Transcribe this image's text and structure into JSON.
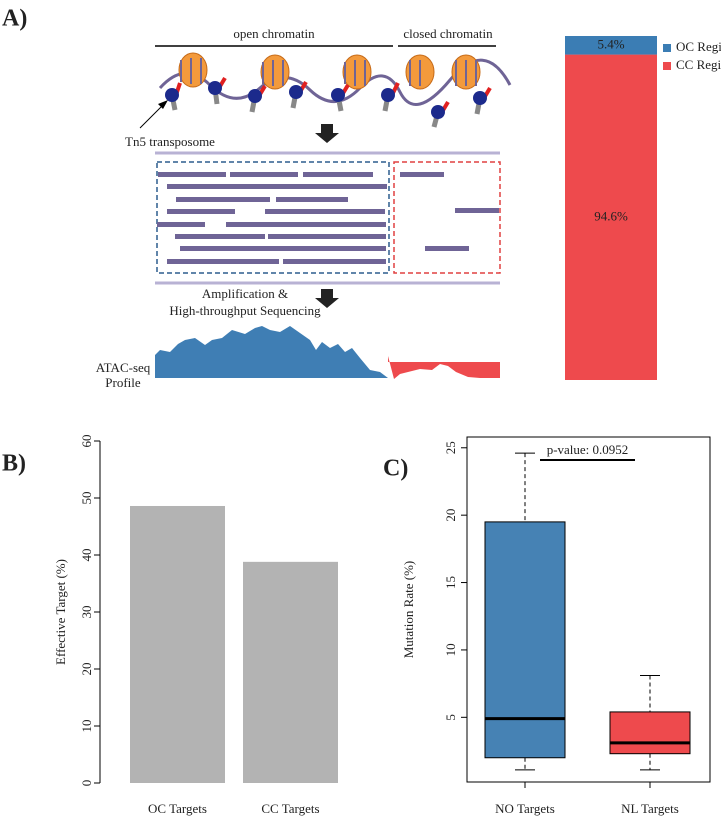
{
  "diagram": {
    "open": "open chromatin",
    "closed": "closed chromatin",
    "tn5": "Tn5 transposome",
    "amp1": "Amplification &",
    "amp2": "High-throughput Sequencing",
    "profile1": "ATAC-seq",
    "profile2": "Profile"
  },
  "chart_data": [
    {
      "type": "stacked-bar",
      "panel_label": "A)",
      "ylim": [
        0,
        100
      ],
      "series": [
        {
          "name": "OC Region",
          "color": "#3b7db4",
          "values": [
            5.4
          ],
          "value_labels": [
            "5.4%"
          ]
        },
        {
          "name": "CC Region",
          "color": "#ee4a4d",
          "values": [
            94.6
          ],
          "value_labels": [
            "94.6%"
          ]
        }
      ]
    },
    {
      "type": "bar",
      "panel_label": "B)",
      "ylabel": "Effective Target (%)",
      "categories": [
        "OC Targets",
        "CC Targets"
      ],
      "values": [
        48.6,
        38.8
      ],
      "color": "#b3b3b3",
      "ylim": [
        0,
        60
      ],
      "yticks": [
        0,
        10,
        20,
        30,
        40,
        50,
        60
      ]
    },
    {
      "type": "box",
      "panel_label": "C)",
      "ylabel": "Mutation Rate (%)",
      "categories": [
        "NO Targets",
        "NL Targets"
      ],
      "boxes": [
        {
          "whisker_low": 1.1,
          "q1": 2.0,
          "median": 4.9,
          "q3": 19.5,
          "whisker_high": 24.6,
          "color": "#4682b4"
        },
        {
          "whisker_low": 1.1,
          "q1": 2.3,
          "median": 3.1,
          "q3": 5.4,
          "whisker_high": 8.1,
          "color": "#ee4a4d"
        }
      ],
      "annotation": "p-value: 0.0952",
      "ylim": [
        0.2,
        25.8
      ],
      "yticks": [
        5,
        10,
        15,
        20,
        25
      ]
    }
  ]
}
